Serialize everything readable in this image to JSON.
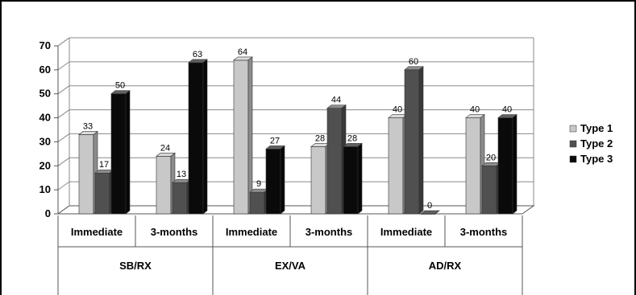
{
  "chart_data": {
    "type": "bar",
    "style": "3d-clustered-column",
    "ylim": [
      0,
      70
    ],
    "yticks": [
      0,
      10,
      20,
      30,
      40,
      50,
      60,
      70
    ],
    "grid": true,
    "legend_position": "right",
    "groups": [
      {
        "label": "SB/RX",
        "categories": [
          "Immediate",
          "3-months"
        ]
      },
      {
        "label": "EX/VA",
        "categories": [
          "Immediate",
          "3-months"
        ]
      },
      {
        "label": "AD/RX",
        "categories": [
          "Immediate",
          "3-months"
        ]
      }
    ],
    "categories": [
      "Immediate",
      "3-months",
      "Immediate",
      "3-months",
      "Immediate",
      "3-months"
    ],
    "series": [
      {
        "name": "Type 1",
        "color": "#c8c8c8",
        "values": [
          33,
          24,
          64,
          28,
          40,
          40
        ]
      },
      {
        "name": "Type 2",
        "color": "#505050",
        "values": [
          17,
          13,
          9,
          44,
          60,
          20
        ]
      },
      {
        "name": "Type 3",
        "color": "#0a0a0a",
        "values": [
          50,
          63,
          27,
          28,
          0,
          40
        ]
      }
    ]
  }
}
